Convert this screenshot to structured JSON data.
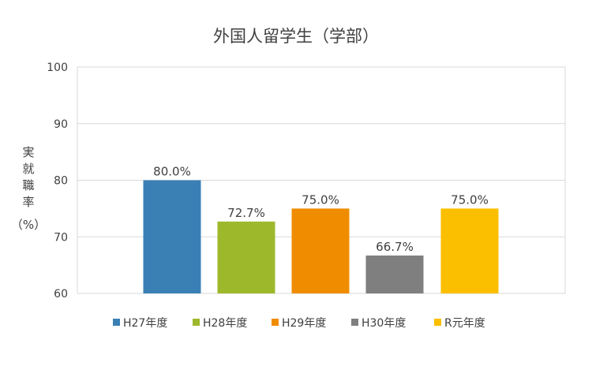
{
  "chart_data": {
    "type": "bar",
    "title": "外国人留学生（学部）",
    "ylabel": [
      "実",
      "就",
      "職",
      "率",
      "（%）"
    ],
    "ylim": [
      60,
      100
    ],
    "yticks": [
      60,
      70,
      80,
      90,
      100
    ],
    "grid": true,
    "legend": "bottom",
    "categories": [
      "H27年度",
      "H28年度",
      "H29年度",
      "H30年度",
      "R元年度"
    ],
    "values": [
      80.0,
      72.7,
      75.0,
      66.7,
      75.0
    ],
    "value_labels": [
      "80.0%",
      "72.7%",
      "75.0%",
      "66.7%",
      "75.0%"
    ],
    "colors": [
      "#3a80b5",
      "#9eb82c",
      "#f08c00",
      "#7f7f7f",
      "#fcbf00"
    ]
  }
}
